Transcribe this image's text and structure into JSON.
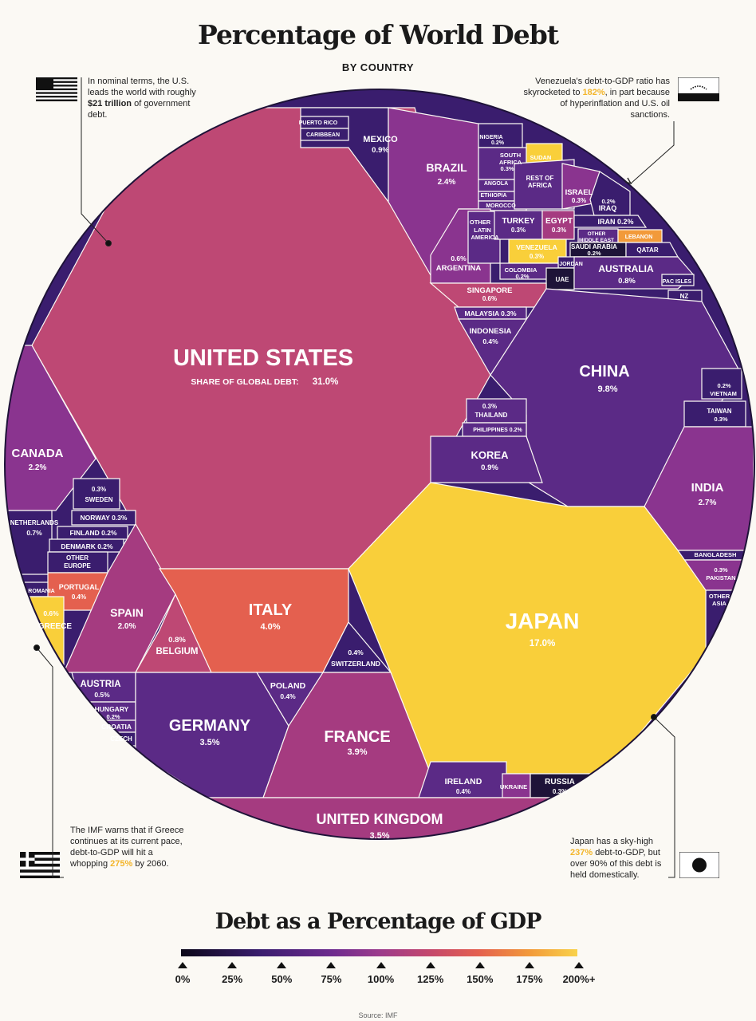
{
  "title": "Percentage of World Debt",
  "subtitle": "BY COUNTRY",
  "notes": {
    "us": {
      "pre": "In nominal terms, the U.S. leads the world with roughly ",
      "bold": "$21 trillion",
      "post": " of government debt."
    },
    "venezuela": {
      "pre": "Venezuela's debt-to-GDP ratio has skyrocketed to ",
      "hl": "182%",
      "post": ", in part because of hyperinflation and U.S. oil sanctions."
    },
    "greece": {
      "pre": "The IMF warns that if Greece continues at its current pace, debt-to-GDP will hit a whopping ",
      "hl": "275%",
      "post": " by 2060."
    },
    "japan": {
      "pre": "Japan has a sky-high ",
      "hl": "237%",
      "post": " debt-to-GDP, but over 90% of this debt is held domestically."
    }
  },
  "chart_data": {
    "type": "voronoi-treemap",
    "title": "Percentage of World Debt",
    "subtitle": "BY COUNTRY",
    "value_label": "SHARE OF GLOBAL DEBT: 31.0%",
    "colors": {
      "c0": "#1e1338",
      "c25": "#3a1d6e",
      "c50": "#5b2a86",
      "c75": "#8a348f",
      "c100": "#a53b80",
      "c125": "#be4874",
      "c150": "#e4604f",
      "c175": "#f29a3a",
      "c200": "#f9cf3a"
    },
    "countries": [
      {
        "name": "UNITED STATES",
        "share": 31.0
      },
      {
        "name": "JAPAN",
        "share": 17.0
      },
      {
        "name": "CHINA",
        "share": 9.8
      },
      {
        "name": "ITALY",
        "share": 4.0
      },
      {
        "name": "FRANCE",
        "share": 3.9
      },
      {
        "name": "UNITED KINGDOM",
        "share": 3.5
      },
      {
        "name": "GERMANY",
        "share": 3.5
      },
      {
        "name": "INDIA",
        "share": 2.7
      },
      {
        "name": "BRAZIL",
        "share": 2.4
      },
      {
        "name": "CANADA",
        "share": 2.2
      },
      {
        "name": "SPAIN",
        "share": 2.0
      },
      {
        "name": "MEXICO",
        "share": 0.9
      },
      {
        "name": "KOREA",
        "share": 0.9
      },
      {
        "name": "AUSTRALIA",
        "share": 0.8
      },
      {
        "name": "BELGIUM",
        "share": 0.8
      },
      {
        "name": "NETHERLANDS",
        "share": 0.7
      },
      {
        "name": "SINGAPORE",
        "share": 0.6
      },
      {
        "name": "ARGENTINA",
        "share": 0.6
      },
      {
        "name": "GREECE",
        "share": 0.6
      },
      {
        "name": "AUSTRIA",
        "share": 0.5
      },
      {
        "name": "INDONESIA",
        "share": 0.4
      },
      {
        "name": "SWITZERLAND",
        "share": 0.4
      },
      {
        "name": "POLAND",
        "share": 0.4
      },
      {
        "name": "IRELAND",
        "share": 0.4
      },
      {
        "name": "PORTUGAL",
        "share": 0.4
      },
      {
        "name": "SOUTH AFRICA",
        "share": 0.3
      },
      {
        "name": "ISRAEL",
        "share": 0.3
      },
      {
        "name": "TURKEY",
        "share": 0.3
      },
      {
        "name": "EGYPT",
        "share": 0.3
      },
      {
        "name": "VENEZUELA",
        "share": 0.3
      },
      {
        "name": "MALAYSIA",
        "share": 0.3
      },
      {
        "name": "THAILAND",
        "share": 0.3
      },
      {
        "name": "TAIWAN",
        "share": 0.3
      },
      {
        "name": "PAKISTAN",
        "share": 0.3
      },
      {
        "name": "SWEDEN",
        "share": 0.3
      },
      {
        "name": "NORWAY",
        "share": 0.3
      },
      {
        "name": "RUSSIA",
        "share": 0.3
      },
      {
        "name": "NIGERIA",
        "share": 0.2
      },
      {
        "name": "IRAQ",
        "share": 0.2
      },
      {
        "name": "IRAN",
        "share": 0.2
      },
      {
        "name": "SAUDI ARABIA",
        "share": 0.2
      },
      {
        "name": "COLOMBIA",
        "share": 0.2
      },
      {
        "name": "PHILIPPINES",
        "share": 0.2
      },
      {
        "name": "VIETNAM",
        "share": 0.2
      },
      {
        "name": "FINLAND",
        "share": 0.2
      },
      {
        "name": "DENMARK",
        "share": 0.2
      },
      {
        "name": "HUNGARY",
        "share": 0.2
      }
    ],
    "labels": {
      "us": "UNITED STATES",
      "us_sub_pre": "SHARE OF GLOBAL DEBT: ",
      "us_sub_val": "31.0%",
      "japan": "JAPAN",
      "japan_v": "17.0%",
      "china": "CHINA",
      "china_v": "9.8%",
      "italy": "ITALY",
      "italy_v": "4.0%",
      "france": "FRANCE",
      "france_v": "3.9%",
      "uk": "UNITED KINGDOM",
      "uk_v": "3.5%",
      "germany": "GERMANY",
      "germany_v": "3.5%",
      "india": "INDIA",
      "india_v": "2.7%",
      "brazil": "BRAZIL",
      "brazil_v": "2.4%",
      "canada": "CANADA",
      "canada_v": "2.2%",
      "spain": "SPAIN",
      "spain_v": "2.0%",
      "mexico": "MEXICO",
      "mexico_v": "0.9%",
      "korea": "KOREA",
      "korea_v": "0.9%",
      "australia": "AUSTRALIA",
      "australia_v": "0.8%",
      "belgium_v": "0.8%",
      "belgium": "BELGIUM",
      "netherlands": "NETHERLANDS",
      "netherlands_v": "0.7%",
      "singapore": "SINGAPORE",
      "singapore_v": "0.6%",
      "argentina_v": "0.6%",
      "argentina": "ARGENTINA",
      "greece_v": "0.6%",
      "greece": "GREECE",
      "austria": "AUSTRIA",
      "austria_v": "0.5%",
      "indonesia": "INDONESIA",
      "indonesia_v": "0.4%",
      "switzerland_v": "0.4%",
      "switzerland": "SWITZERLAND",
      "poland": "POLAND",
      "poland_v": "0.4%",
      "ireland": "IRELAND",
      "ireland_v": "0.4%",
      "portugal": "PORTUGAL",
      "portugal_v": "0.4%",
      "southafrica1": "SOUTH",
      "southafrica2": "AFRICA",
      "southafrica_v": "0.3%",
      "israel": "ISRAEL",
      "israel_v": "0.3%",
      "turkey": "TURKEY",
      "turkey_v": "0.3%",
      "egypt": "EGYPT",
      "egypt_v": "0.3%",
      "venezuela": "VENEZUELA",
      "venezuela_v": "0.3%",
      "malaysia": "MALAYSIA 0.3%",
      "thailand_v": "0.3%",
      "thailand": "THAILAND",
      "taiwan": "TAIWAN",
      "taiwan_v": "0.3%",
      "pakistan_v": "0.3%",
      "pakistan": "PAKISTAN",
      "sweden_v": "0.3%",
      "sweden": "SWEDEN",
      "norway": "NORWAY 0.3%",
      "russia": "RUSSIA",
      "russia_v": "0.3%",
      "nigeria": "NIGERIA",
      "nigeria_v": "0.2%",
      "iraq_v": "0.2%",
      "iraq": "IRAQ",
      "iran": "IRAN 0.2%",
      "saudi": "SAUDI ARABIA",
      "saudi_v": "0.2%",
      "colombia": "COLOMBIA",
      "colombia_v": "0.2%",
      "philippines": "PHILIPPINES 0.2%",
      "vietnam_v": "0.2%",
      "vietnam": "VIETNAM",
      "finland": "FINLAND 0.2%",
      "denmark": "DENMARK 0.2%",
      "hungary": "HUNGARY",
      "hungary_v": "0.2%",
      "puertorico": "PUERTO RICO",
      "caribbean": "CARIBBEAN",
      "sudan": "SUDAN",
      "angola": "ANGOLA",
      "ethiopia": "ETHIOPIA",
      "morocco": "MOROCCO",
      "restafrica1": "REST OF",
      "restafrica2": "AFRICA",
      "otherlatam1": "OTHER",
      "otherlatam2": "LATIN",
      "otherlatam3": "AMERICA",
      "othermideast1": "OTHER",
      "othermideast2": "MIDDLE EAST",
      "lebanon": "LEBANON",
      "qatar": "QATAR",
      "jordan": "JORDAN",
      "uae": "UAE",
      "pacisles": "PAC ISLES",
      "nz": "NZ",
      "bangladesh": "BANGLADESH",
      "otherasia1": "OTHER",
      "otherasia2": "ASIA",
      "othereurope1": "OTHER",
      "othereurope2": "EUROPE",
      "romania": "ROMANIA",
      "croatia": "CROATIA",
      "czech": "CZECH",
      "ukraine": "UKRAINE"
    }
  },
  "legend": {
    "title": "Debt as a Percentage of GDP",
    "ticks": [
      "0%",
      "25%",
      "50%",
      "75%",
      "100%",
      "125%",
      "150%",
      "175%",
      "200%+"
    ]
  },
  "source": "Source: IMF"
}
